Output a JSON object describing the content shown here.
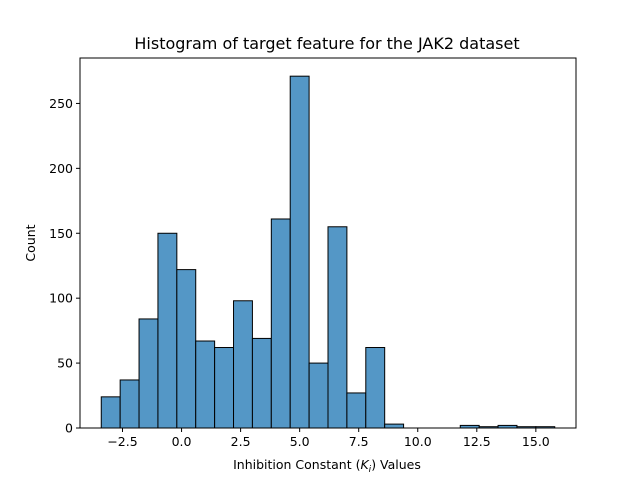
{
  "chart_data": {
    "type": "bar",
    "title": "Histogram of target feature for the JAK2 dataset",
    "xlabel_prefix": "Inhibition Constant (",
    "xlabel_symbol": "K",
    "xlabel_subscript": "i",
    "xlabel_suffix": ") Values",
    "ylabel": "Count",
    "xlim": [
      -4.3,
      16.7
    ],
    "ylim": [
      0,
      285
    ],
    "xticks": [
      -2.5,
      0.0,
      2.5,
      5.0,
      7.5,
      10.0,
      12.5,
      15.0
    ],
    "xtick_labels": [
      "−2.5",
      "0.0",
      "2.5",
      "5.0",
      "7.5",
      "10.0",
      "12.5",
      "15.0"
    ],
    "yticks": [
      0,
      50,
      100,
      150,
      200,
      250
    ],
    "ytick_labels": [
      "0",
      "50",
      "100",
      "150",
      "200",
      "250"
    ],
    "bin_start": -3.4,
    "bin_width": 0.8,
    "values": [
      24,
      37,
      84,
      150,
      122,
      67,
      62,
      98,
      69,
      161,
      271,
      50,
      155,
      27,
      62,
      3,
      0,
      0,
      0,
      2,
      1,
      2,
      1,
      1
    ],
    "bar_color": "#5497c6",
    "grid": false
  }
}
